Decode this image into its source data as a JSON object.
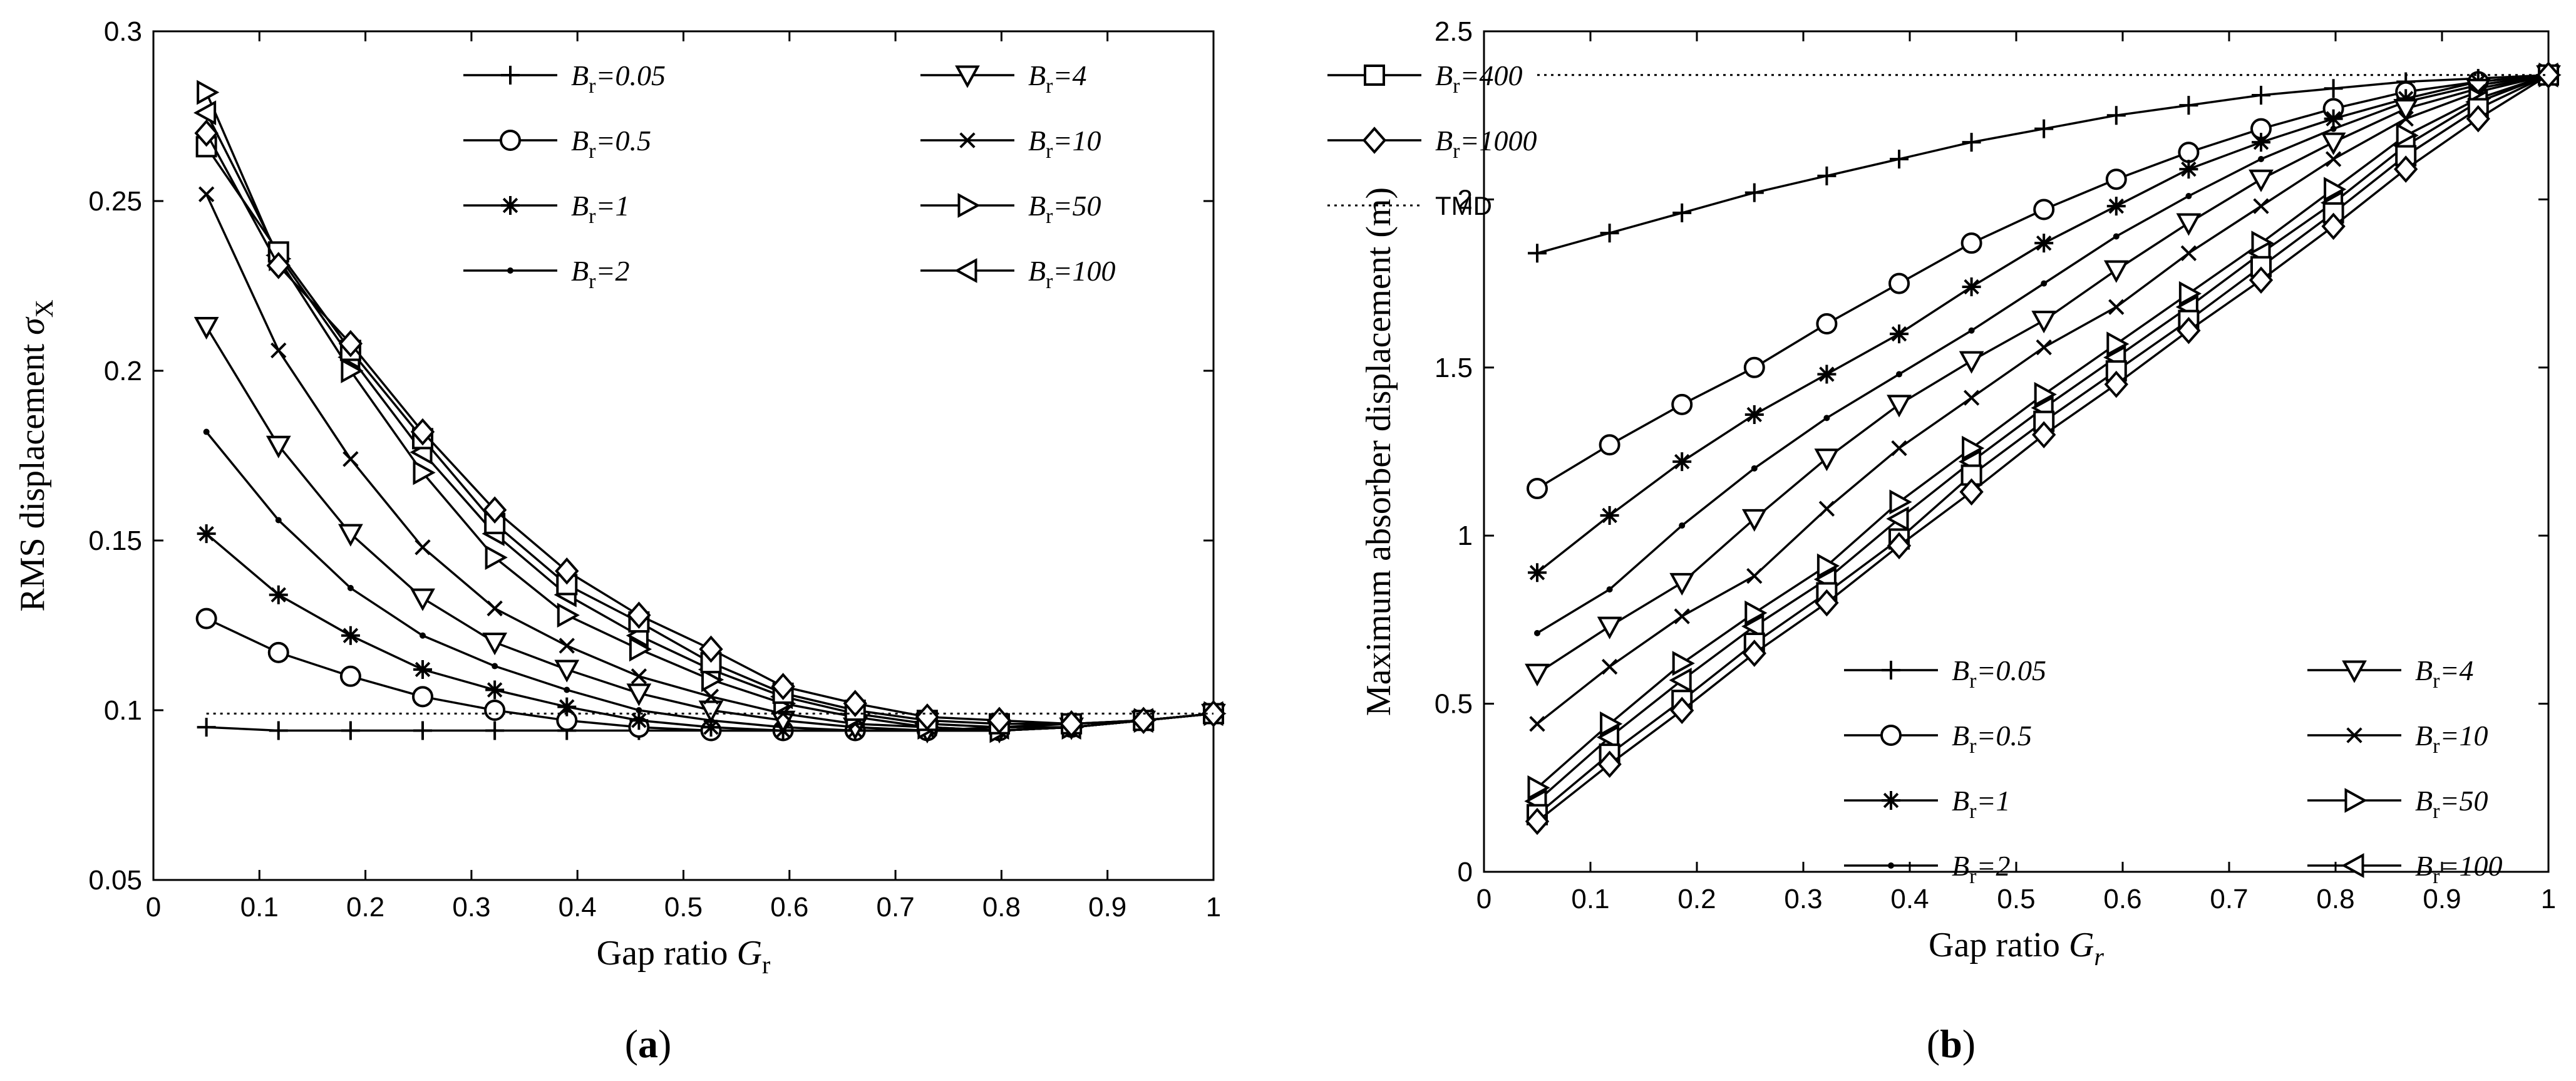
{
  "chart_data": [
    {
      "type": "line",
      "panel_label": "(a)",
      "ylabel": "RMS displacement σX",
      "xlabel": "Gap ratio Gr",
      "xlim": [
        0,
        1
      ],
      "ylim": [
        0.05,
        0.3
      ],
      "xticks": [
        "0",
        "0.1",
        "0.2",
        "0.3",
        "0.4",
        "0.5",
        "0.6",
        "0.7",
        "0.8",
        "0.9",
        "1"
      ],
      "yticks": [
        "0.05",
        "0.1",
        "0.15",
        "0.2",
        "0.25",
        "0.3"
      ],
      "grid": false,
      "legend": "top-right",
      "x": [
        0.05,
        0.118,
        0.186,
        0.254,
        0.322,
        0.39,
        0.458,
        0.526,
        0.594,
        0.662,
        0.73,
        0.798,
        0.866,
        0.934,
        1.0
      ],
      "series": [
        {
          "name": "Br=0.05",
          "marker": "plus",
          "values": [
            0.095,
            0.094,
            0.094,
            0.094,
            0.094,
            0.094,
            0.094,
            0.094,
            0.094,
            0.094,
            0.094,
            0.095,
            0.096,
            0.097,
            0.099
          ]
        },
        {
          "name": "Br=0.5",
          "marker": "circle",
          "values": [
            0.127,
            0.117,
            0.11,
            0.104,
            0.1,
            0.097,
            0.095,
            0.094,
            0.094,
            0.094,
            0.094,
            0.094,
            0.095,
            0.097,
            0.099
          ]
        },
        {
          "name": "Br=1",
          "marker": "star",
          "values": [
            0.152,
            0.134,
            0.122,
            0.112,
            0.106,
            0.101,
            0.097,
            0.095,
            0.094,
            0.094,
            0.094,
            0.094,
            0.095,
            0.097,
            0.099
          ]
        },
        {
          "name": "Br=2",
          "marker": "dot",
          "values": [
            0.182,
            0.156,
            0.136,
            0.122,
            0.113,
            0.106,
            0.1,
            0.097,
            0.095,
            0.094,
            0.094,
            0.094,
            0.095,
            0.097,
            0.099
          ]
        },
        {
          "name": "Br=4",
          "marker": "tri-down",
          "values": [
            0.213,
            0.178,
            0.152,
            0.133,
            0.12,
            0.112,
            0.105,
            0.1,
            0.097,
            0.095,
            0.094,
            0.094,
            0.095,
            0.097,
            0.099
          ]
        },
        {
          "name": "Br=10",
          "marker": "x",
          "values": [
            0.252,
            0.206,
            0.174,
            0.148,
            0.13,
            0.119,
            0.11,
            0.104,
            0.099,
            0.096,
            0.095,
            0.094,
            0.095,
            0.097,
            0.099
          ]
        },
        {
          "name": "Br=50",
          "marker": "tri-right",
          "values": [
            0.282,
            0.233,
            0.2,
            0.17,
            0.145,
            0.128,
            0.118,
            0.109,
            0.102,
            0.098,
            0.095,
            0.094,
            0.095,
            0.097,
            0.099
          ]
        },
        {
          "name": "Br=100",
          "marker": "tri-left",
          "values": [
            0.276,
            0.234,
            0.204,
            0.176,
            0.152,
            0.134,
            0.122,
            0.112,
            0.104,
            0.099,
            0.096,
            0.095,
            0.095,
            0.097,
            0.099
          ]
        },
        {
          "name": "Br=400",
          "marker": "square",
          "values": [
            0.266,
            0.235,
            0.206,
            0.18,
            0.155,
            0.137,
            0.126,
            0.114,
            0.105,
            0.1,
            0.097,
            0.096,
            0.096,
            0.097,
            0.099
          ]
        },
        {
          "name": "Br=1000",
          "marker": "diamond",
          "values": [
            0.27,
            0.231,
            0.208,
            0.182,
            0.159,
            0.141,
            0.128,
            0.118,
            0.107,
            0.102,
            0.098,
            0.097,
            0.096,
            0.097,
            0.099
          ]
        },
        {
          "name": "TMD",
          "marker": "none",
          "dotted": true,
          "values": [
            0.099,
            0.099,
            0.099,
            0.099,
            0.099,
            0.099,
            0.099,
            0.099,
            0.099,
            0.099,
            0.099,
            0.099,
            0.099,
            0.099,
            0.099
          ]
        }
      ]
    },
    {
      "type": "line",
      "panel_label": "(b)",
      "ylabel": "Maximum absorber displacement (m)",
      "xlabel": "Gap ratio Gr",
      "xlim": [
        0,
        1
      ],
      "ylim": [
        0,
        2.5
      ],
      "xticks": [
        "0",
        "0.1",
        "0.2",
        "0.3",
        "0.4",
        "0.5",
        "0.6",
        "0.7",
        "0.8",
        "0.9",
        "1"
      ],
      "yticks": [
        "0",
        "0.5",
        "1",
        "1.5",
        "2",
        "2.5"
      ],
      "grid": false,
      "legend": "bottom-right",
      "x": [
        0.05,
        0.118,
        0.186,
        0.254,
        0.322,
        0.39,
        0.458,
        0.526,
        0.594,
        0.662,
        0.73,
        0.798,
        0.866,
        0.934,
        1.0
      ],
      "series": [
        {
          "name": "Br=0.05",
          "marker": "plus",
          "values": [
            1.84,
            1.9,
            1.96,
            2.02,
            2.07,
            2.12,
            2.17,
            2.21,
            2.25,
            2.28,
            2.31,
            2.33,
            2.35,
            2.36,
            2.37
          ]
        },
        {
          "name": "Br=0.5",
          "marker": "circle",
          "values": [
            1.14,
            1.27,
            1.39,
            1.5,
            1.63,
            1.75,
            1.87,
            1.97,
            2.06,
            2.14,
            2.21,
            2.27,
            2.32,
            2.35,
            2.37
          ]
        },
        {
          "name": "Br=1",
          "marker": "star",
          "values": [
            0.89,
            1.06,
            1.22,
            1.36,
            1.48,
            1.6,
            1.74,
            1.87,
            1.98,
            2.09,
            2.17,
            2.24,
            2.3,
            2.35,
            2.37
          ]
        },
        {
          "name": "Br=2",
          "marker": "dot",
          "values": [
            0.71,
            0.84,
            1.03,
            1.2,
            1.35,
            1.48,
            1.61,
            1.75,
            1.89,
            2.01,
            2.12,
            2.21,
            2.29,
            2.34,
            2.37
          ]
        },
        {
          "name": "Br=4",
          "marker": "tri-down",
          "values": [
            0.59,
            0.73,
            0.86,
            1.05,
            1.23,
            1.39,
            1.52,
            1.64,
            1.79,
            1.93,
            2.06,
            2.17,
            2.27,
            2.33,
            2.37
          ]
        },
        {
          "name": "Br=10",
          "marker": "x",
          "values": [
            0.44,
            0.61,
            0.76,
            0.88,
            1.08,
            1.26,
            1.41,
            1.56,
            1.68,
            1.84,
            1.98,
            2.12,
            2.24,
            2.32,
            2.37
          ]
        },
        {
          "name": "Br=50",
          "marker": "tri-right",
          "values": [
            0.25,
            0.44,
            0.62,
            0.77,
            0.91,
            1.1,
            1.26,
            1.42,
            1.57,
            1.72,
            1.87,
            2.03,
            2.19,
            2.3,
            2.37
          ]
        },
        {
          "name": "Br=100",
          "marker": "tri-left",
          "values": [
            0.21,
            0.4,
            0.57,
            0.73,
            0.87,
            1.05,
            1.22,
            1.38,
            1.53,
            1.68,
            1.84,
            1.99,
            2.16,
            2.29,
            2.37
          ]
        },
        {
          "name": "Br=400",
          "marker": "square",
          "values": [
            0.17,
            0.35,
            0.51,
            0.68,
            0.83,
            0.99,
            1.18,
            1.34,
            1.49,
            1.64,
            1.8,
            1.96,
            2.13,
            2.27,
            2.37
          ]
        },
        {
          "name": "Br=1000",
          "marker": "diamond",
          "values": [
            0.15,
            0.32,
            0.48,
            0.65,
            0.8,
            0.97,
            1.13,
            1.3,
            1.45,
            1.61,
            1.76,
            1.92,
            2.09,
            2.24,
            2.37
          ]
        },
        {
          "name": "TMD",
          "marker": "none",
          "dotted": true,
          "values": [
            2.37,
            2.37,
            2.37,
            2.37,
            2.37,
            2.37,
            2.37,
            2.37,
            2.37,
            2.37,
            2.37,
            2.37,
            2.37,
            2.37,
            2.37
          ]
        }
      ]
    }
  ]
}
